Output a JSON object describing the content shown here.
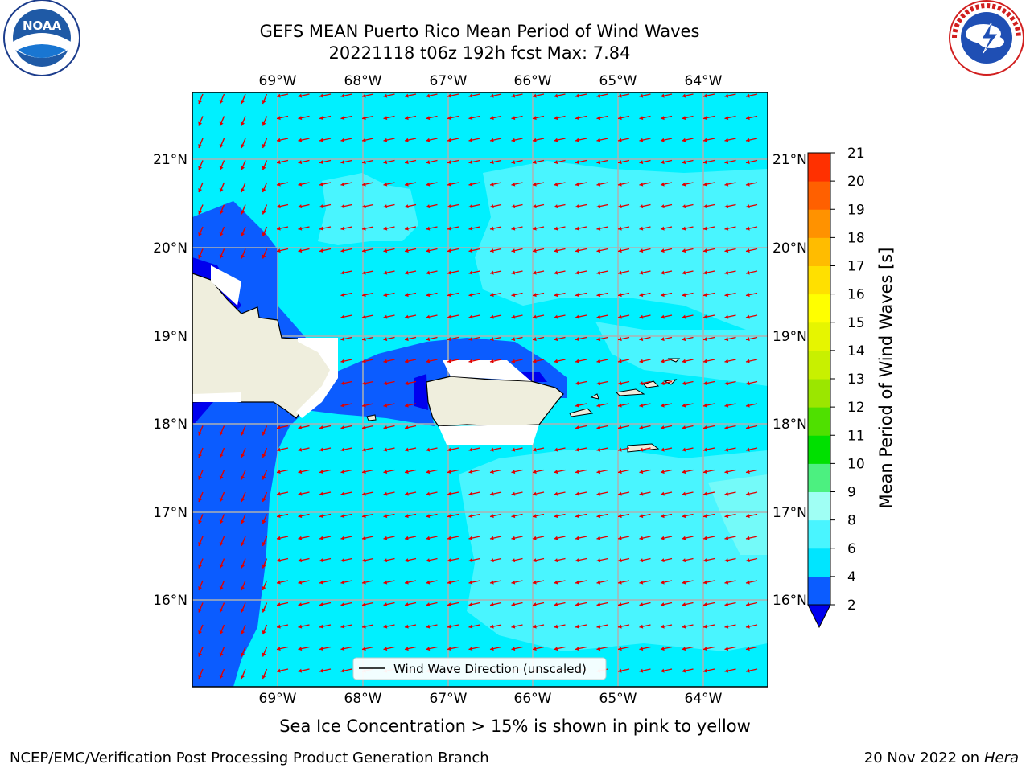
{
  "title": {
    "line1": "GEFS MEAN Puerto Rico Mean Period of Wind Waves",
    "line2": "20221118 t06z 192h fcst   Max: 7.84"
  },
  "logos": {
    "left": {
      "name": "noaa-logo",
      "text": "NOAA"
    },
    "right": {
      "name": "nws-logo",
      "ring_text": "NATIONAL WEATHER SERVICE"
    }
  },
  "map": {
    "lon_labels": [
      "69°W",
      "68°W",
      "67°W",
      "66°W",
      "65°W",
      "64°W"
    ],
    "lat_labels": [
      "21°N",
      "20°N",
      "19°N",
      "18°N",
      "17°N",
      "16°N"
    ],
    "legend_label": "Wind Wave Direction (unscaled)",
    "wind_direction": "from east-northeast (arrows point west-southwest)"
  },
  "colorbar": {
    "label": "Mean Period of Wind Waves [s]",
    "ticks": [
      "2",
      "4",
      "6",
      "8",
      "9",
      "10",
      "11",
      "12",
      "13",
      "14",
      "15",
      "16",
      "17",
      "18",
      "19",
      "20",
      "21"
    ],
    "colors": [
      "#0b5cff",
      "#00e5ff",
      "#49f5ff",
      "#a0fff4",
      "#4cf080",
      "#00e000",
      "#4fe000",
      "#9be600",
      "#c8f000",
      "#e6f500",
      "#ffff00",
      "#ffe000",
      "#ffbc00",
      "#ff9200",
      "#ff6000",
      "#ff3000",
      "#ff0000"
    ],
    "under_color": "#0000ee"
  },
  "footer": {
    "note": "Sea Ice Concentration > 15% is shown in pink to yellow",
    "credit": "NCEP/EMC/Verification Post Processing Product Generation Branch",
    "date": "20 Nov 2022 on",
    "machine": "Hera"
  }
}
